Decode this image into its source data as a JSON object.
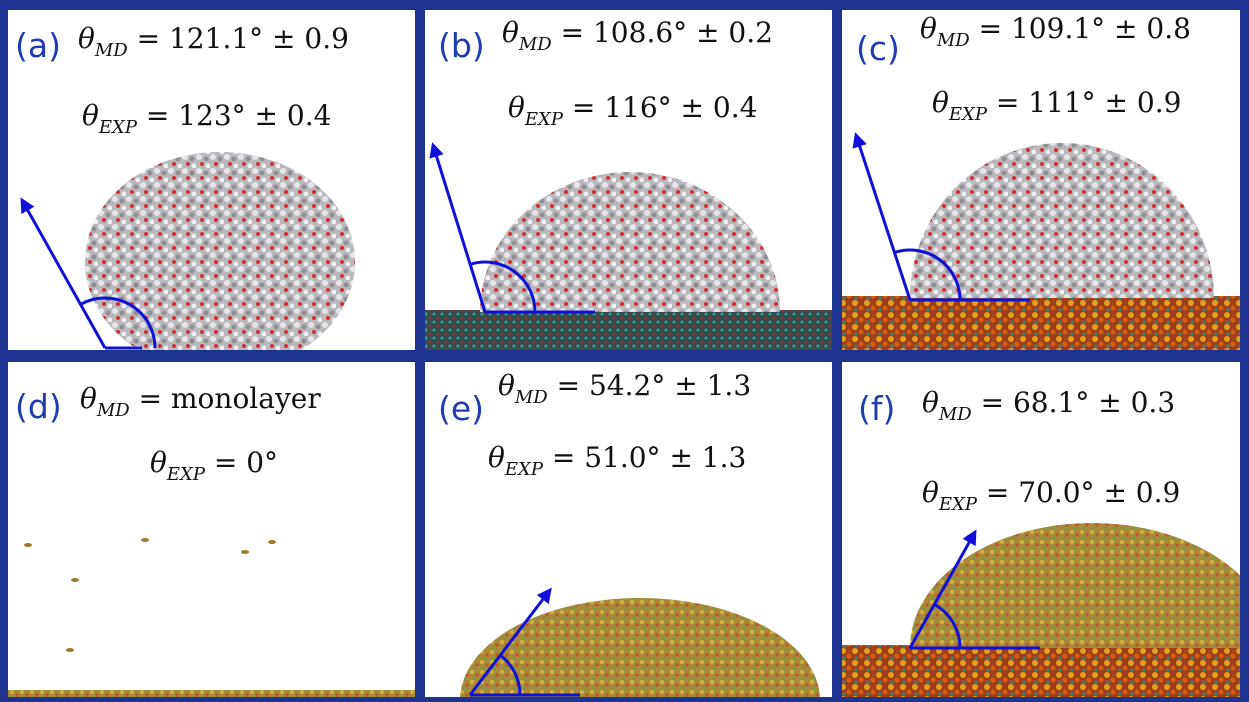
{
  "figure": {
    "theta": "θ",
    "panels": [
      {
        "label": "(a)",
        "md_sub": "MD",
        "md_value": " = 121.1° ± 0.9",
        "exp_sub": "EXP",
        "exp_value": " = 123° ± 0.4"
      },
      {
        "label": "(b)",
        "md_sub": "MD",
        "md_value": " = 108.6° ± 0.2",
        "exp_sub": "EXP",
        "exp_value": " = 116° ± 0.4"
      },
      {
        "label": "(c)",
        "md_sub": "MD",
        "md_value": " = 109.1° ± 0.8",
        "exp_sub": "EXP",
        "exp_value": " = 111° ± 0.9"
      },
      {
        "label": "(d)",
        "md_sub": "MD",
        "md_value": " = monolayer",
        "exp_sub": "EXP",
        "exp_value": " = 0°"
      },
      {
        "label": "(e)",
        "md_sub": "MD",
        "md_value": " = 54.2° ± 1.3",
        "exp_sub": "EXP",
        "exp_value": " = 51.0° ± 1.3"
      },
      {
        "label": "(f)",
        "md_sub": "MD",
        "md_value": " = 68.1° ± 0.3",
        "exp_sub": "EXP",
        "exp_value": " = 70.0° ± 0.9"
      }
    ]
  }
}
